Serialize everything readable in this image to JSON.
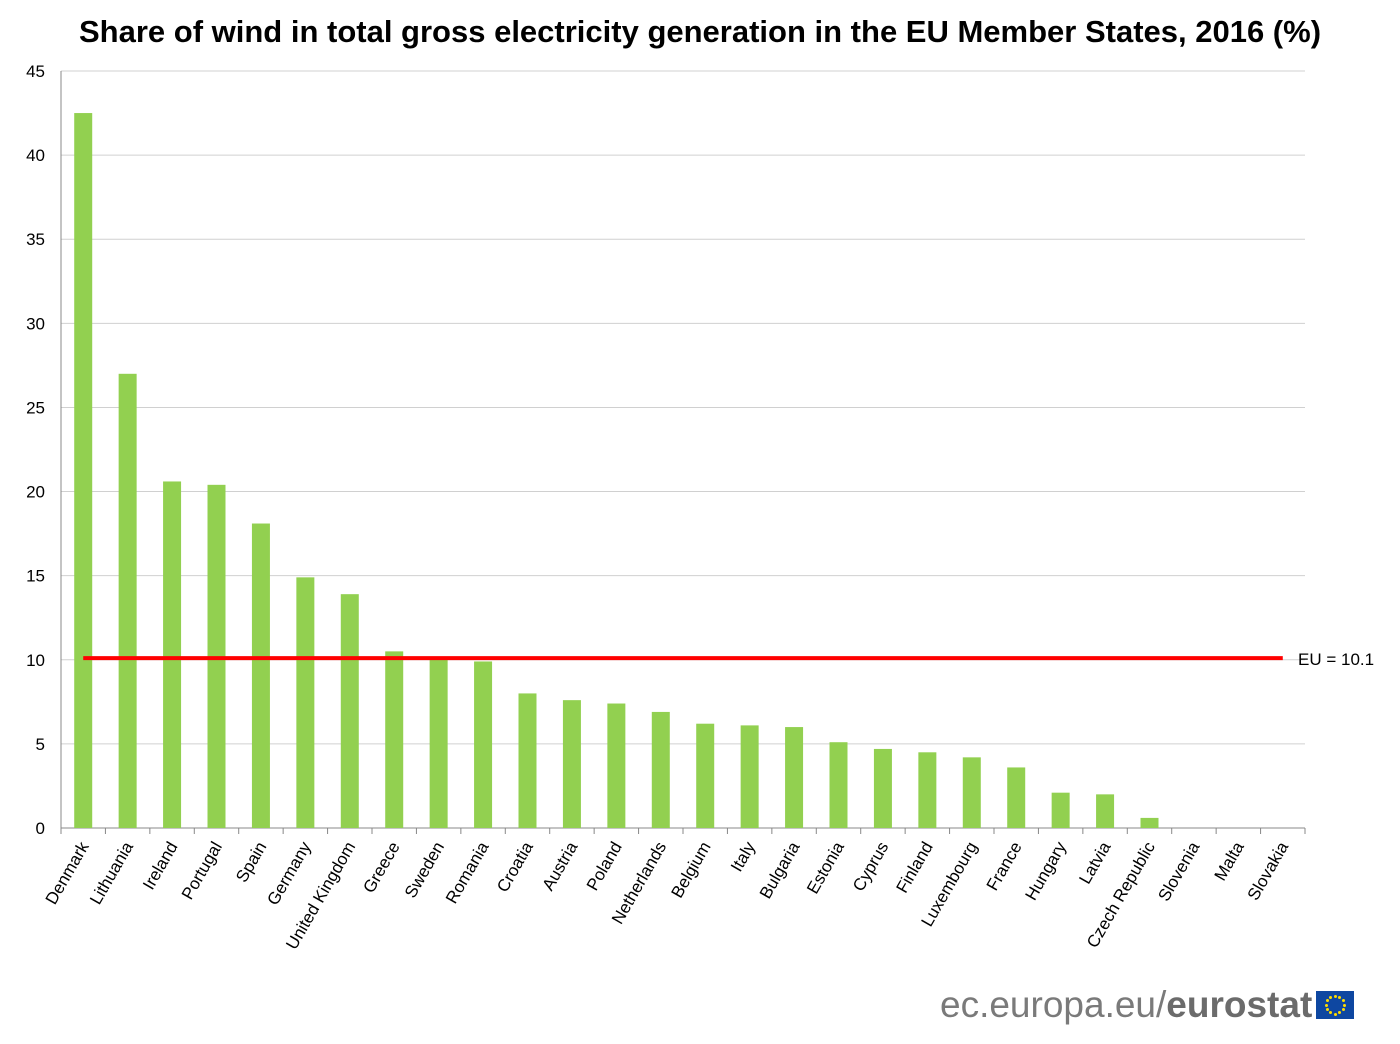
{
  "chart_data": {
    "type": "bar",
    "title": "Share of wind in total gross electricity generation in the EU Member States, 2016 (%)",
    "xlabel": "",
    "ylabel": "",
    "ylim": [
      0,
      45
    ],
    "yticks": [
      0,
      5,
      10,
      15,
      20,
      25,
      30,
      35,
      40,
      45
    ],
    "grid": true,
    "categories": [
      "Denmark",
      "Lithuania",
      "Ireland",
      "Portugal",
      "Spain",
      "Germany",
      "United Kingdom",
      "Greece",
      "Sweden",
      "Romania",
      "Croatia",
      "Austria",
      "Poland",
      "Netherlands",
      "Belgium",
      "Italy",
      "Bulgaria",
      "Estonia",
      "Cyprus",
      "Finland",
      "Luxembourg",
      "France",
      "Hungary",
      "Latvia",
      "Czech Republic",
      "Slovenia",
      "Malta",
      "Slovakia"
    ],
    "values": [
      42.5,
      27.0,
      20.6,
      20.4,
      18.1,
      14.9,
      13.9,
      10.5,
      10.0,
      9.9,
      8.0,
      7.6,
      7.4,
      6.9,
      6.2,
      6.1,
      6.0,
      5.1,
      4.7,
      4.5,
      4.2,
      3.6,
      2.1,
      2.0,
      0.6,
      0.0,
      0.0,
      0.0
    ],
    "bar_color": "#92d050",
    "reference_line": {
      "value": 10.1,
      "label": "EU = 10.1",
      "color": "#ff0000"
    }
  },
  "logo": {
    "prefix": "ec.europa.eu/",
    "brand": "eurostat"
  }
}
